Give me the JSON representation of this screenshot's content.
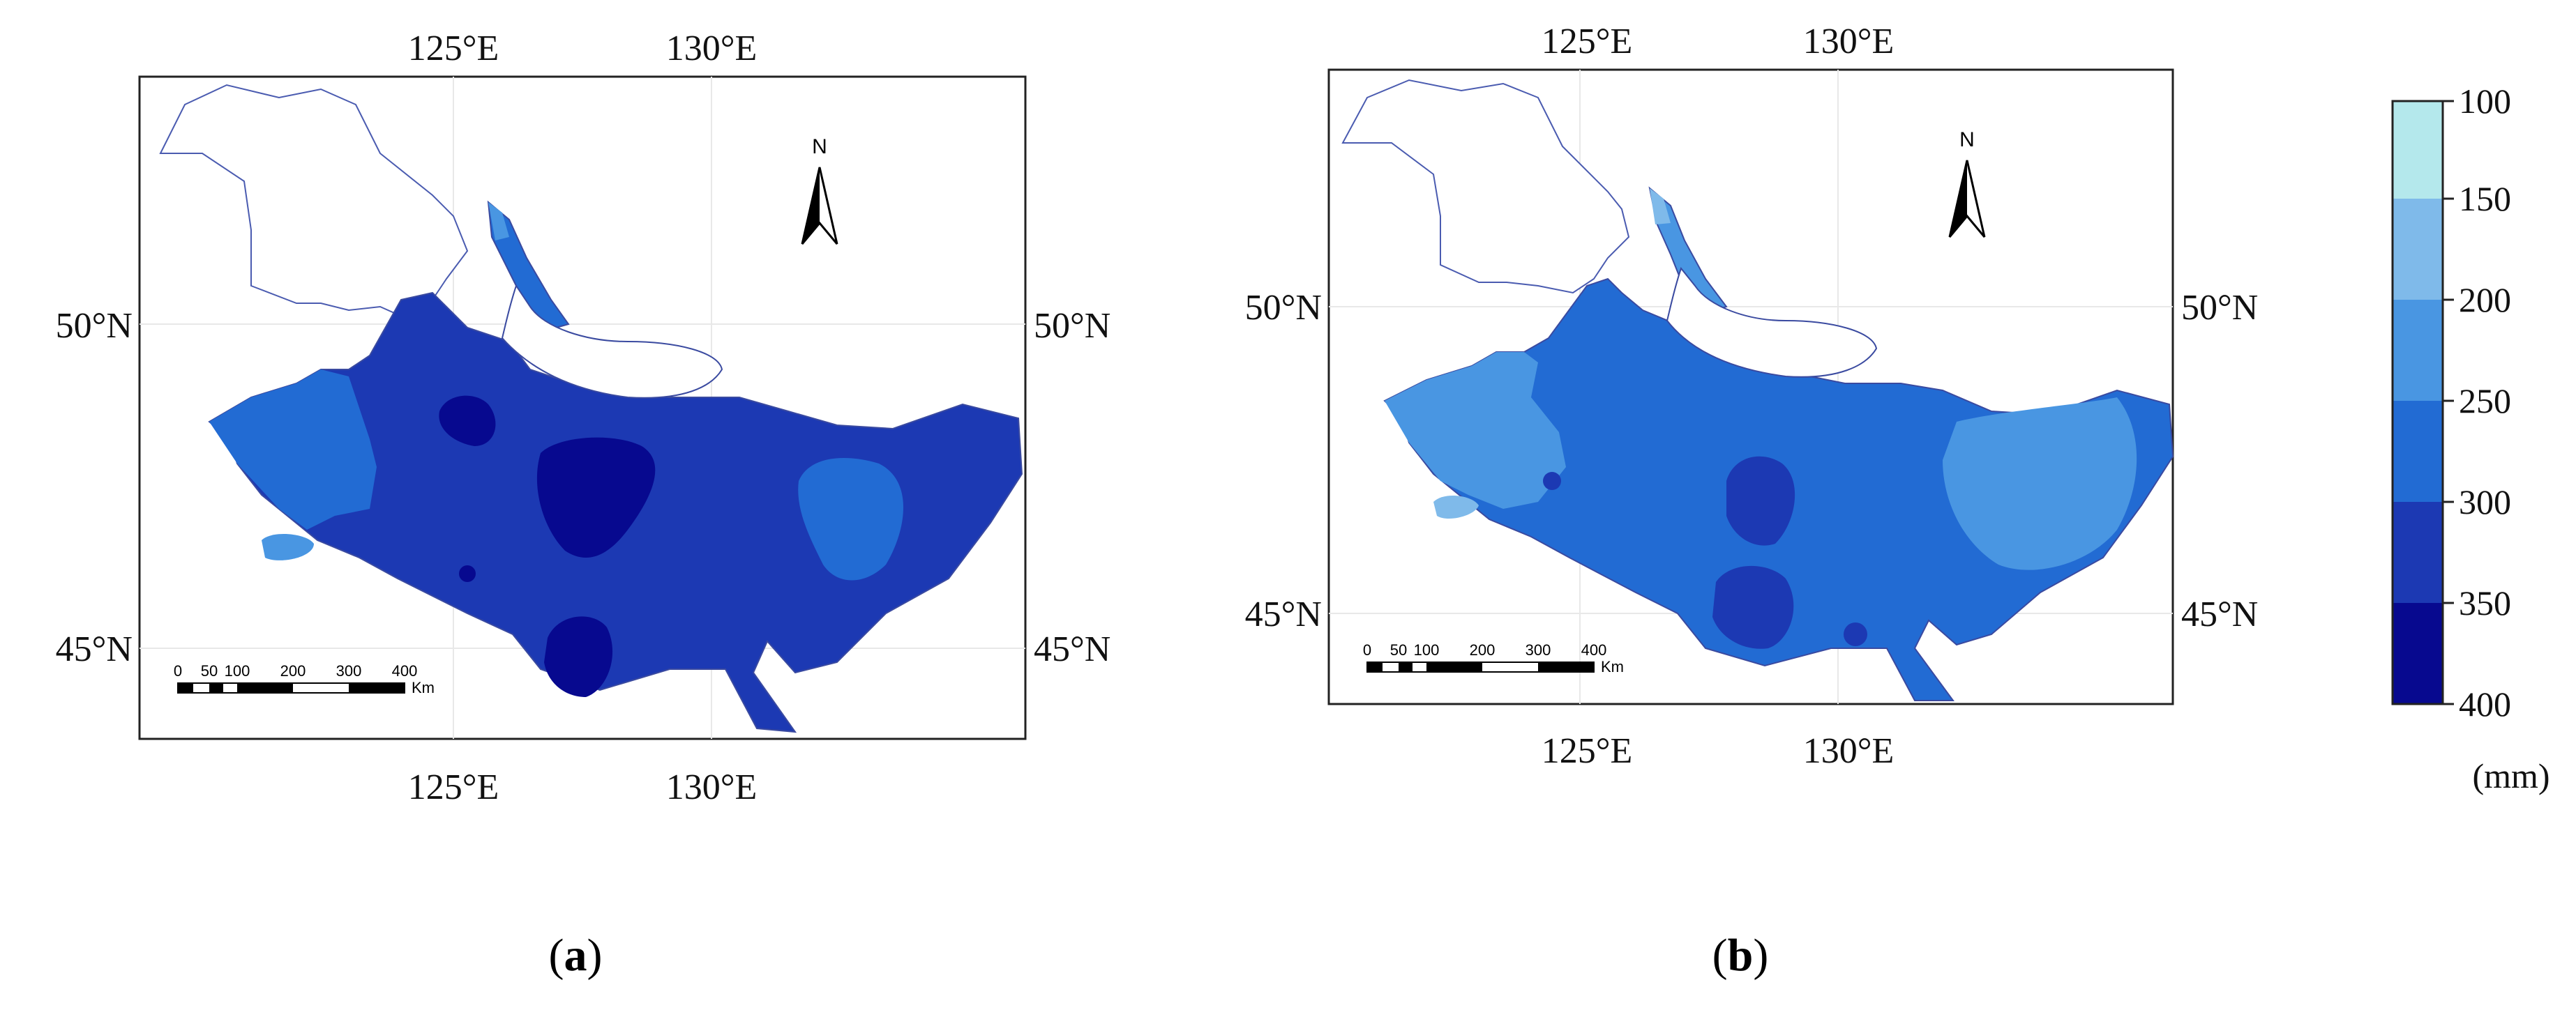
{
  "colors": {
    "c100_150": "#b4e8ec",
    "c150_200": "#7fbaea",
    "c200_250": "#4996e2",
    "c250_300": "#226bd3",
    "c300_350": "#1c39b3",
    "c350_400": "#07098f",
    "outline": "#3a4aa0"
  },
  "panels": [
    {
      "label_open": "(",
      "label_letter": "a",
      "label_close": ")",
      "lon_top": [
        "125°E",
        "130°E"
      ],
      "lon_bottom": [
        "125°E",
        "130°E"
      ],
      "lat_left": [
        "50°N",
        "45°N"
      ],
      "lat_right": [
        "50°N",
        "45°N"
      ],
      "north": "N",
      "scalebar": {
        "ticks": [
          "0",
          "50",
          "100",
          "200",
          "300",
          "400"
        ],
        "unit": "Km"
      }
    },
    {
      "label_open": "(",
      "label_letter": "b",
      "label_close": ")",
      "lon_top": [
        "125°E",
        "130°E"
      ],
      "lon_bottom": [
        "125°E",
        "130°E"
      ],
      "lat_left": [
        "50°N",
        "45°N"
      ],
      "lat_right": [
        "50°N",
        "45°N"
      ],
      "north": "N",
      "scalebar": {
        "ticks": [
          "0",
          "50",
          "100",
          "200",
          "300",
          "400"
        ],
        "unit": "Km"
      }
    }
  ],
  "legend": {
    "ticks": [
      "100",
      "150",
      "200",
      "250",
      "300",
      "350",
      "400"
    ],
    "unit": "(mm)"
  }
}
